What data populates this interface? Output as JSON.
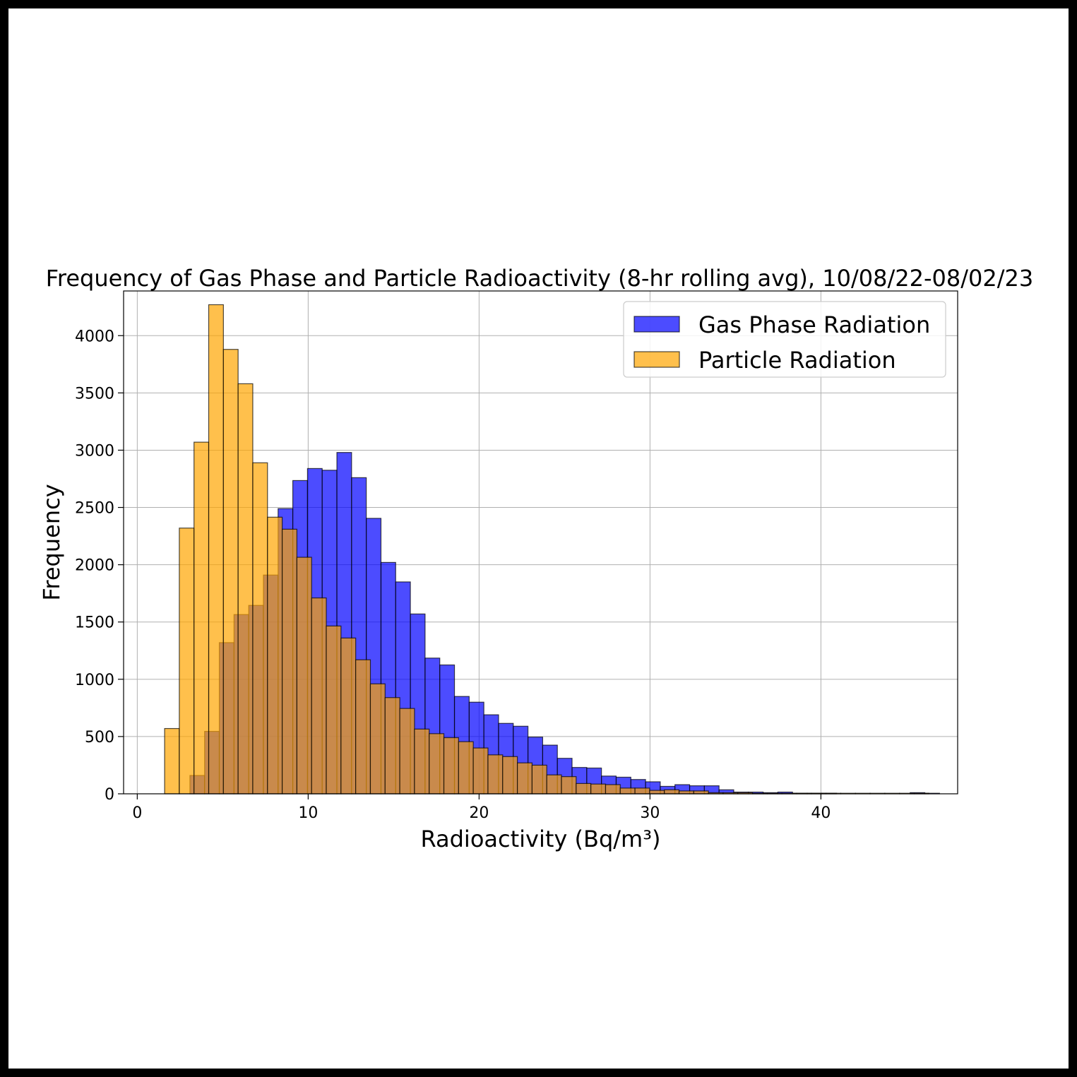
{
  "chart_data": {
    "type": "histogram",
    "title": "Frequency of Gas Phase and Particle Radioactivity (8-hr rolling avg), 10/08/22-08/02/23",
    "xlabel": "Radioactivity (Bq/m³)",
    "ylabel": "Frequency",
    "xlim": [
      -0.8,
      48.0
    ],
    "ylim": [
      0,
      4390
    ],
    "x_ticks": [
      0,
      10,
      20,
      30,
      40
    ],
    "y_ticks": [
      0,
      500,
      1000,
      1500,
      2000,
      2500,
      3000,
      3500,
      4000
    ],
    "grid": true,
    "legend_position": "top-right",
    "bin_width": 0.86,
    "series": [
      {
        "name": "Gas Phase Radiation",
        "color": "#0000ff",
        "alpha": 0.7,
        "x_start": 3.08,
        "values": [
          160,
          545,
          1320,
          1565,
          1645,
          1910,
          2490,
          2735,
          2840,
          2825,
          2980,
          2760,
          2405,
          2020,
          1850,
          1570,
          1185,
          1125,
          850,
          800,
          690,
          615,
          590,
          495,
          425,
          310,
          230,
          225,
          155,
          145,
          125,
          105,
          65,
          80,
          70,
          70,
          35,
          15,
          15,
          10,
          15,
          5,
          5,
          5,
          0,
          0,
          0,
          0,
          0,
          10,
          5
        ]
      },
      {
        "name": "Particle Radiation",
        "color": "#ffa500",
        "alpha": 0.7,
        "x_start": 1.6,
        "values": [
          570,
          2320,
          3070,
          4270,
          3880,
          3580,
          2890,
          2415,
          2310,
          2065,
          1710,
          1465,
          1360,
          1170,
          960,
          840,
          745,
          565,
          525,
          490,
          455,
          400,
          340,
          325,
          270,
          250,
          165,
          150,
          90,
          85,
          80,
          50,
          50,
          30,
          35,
          25,
          25,
          10,
          10,
          10,
          5,
          5,
          5,
          5,
          5,
          5,
          5,
          5,
          5,
          5,
          5,
          5
        ]
      }
    ]
  }
}
